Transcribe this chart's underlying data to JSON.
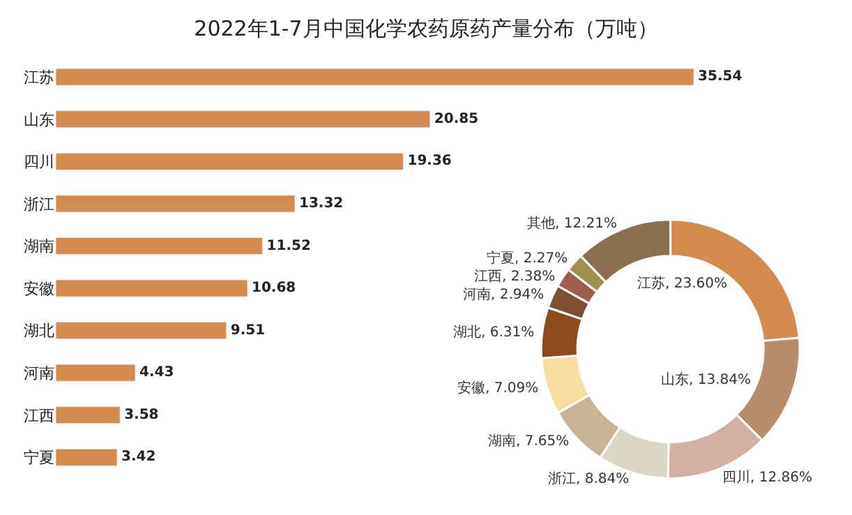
{
  "chart_data": [
    {
      "type": "bar",
      "title": "2022年1-7月中国化学农药原药产量分布（万吨）",
      "orientation": "horizontal",
      "categories": [
        "江苏",
        "山东",
        "四川",
        "浙江",
        "湖南",
        "安徽",
        "湖北",
        "河南",
        "江西",
        "宁夏"
      ],
      "values": [
        35.54,
        20.85,
        19.36,
        13.32,
        11.52,
        10.68,
        9.51,
        4.43,
        3.58,
        3.42
      ],
      "color": "#d48c4e",
      "data_labels": true
    },
    {
      "type": "donut",
      "categories": [
        "江苏",
        "山东",
        "四川",
        "浙江",
        "湖南",
        "安徽",
        "湖北",
        "河南",
        "江西",
        "宁夏",
        "其他"
      ],
      "values": [
        23.6,
        13.84,
        12.86,
        8.84,
        7.65,
        7.09,
        6.31,
        2.94,
        2.38,
        2.27,
        12.21
      ],
      "value_labels": [
        "23.60%",
        "13.84%",
        "12.86%",
        "8.84%",
        "7.65%",
        "7.09%",
        "6.31%",
        "2.94%",
        "2.38%",
        "2.27%",
        "12.21%"
      ],
      "colors": [
        "#d48c4e",
        "#b88d6c",
        "#d4b0a4",
        "#dcd6c4",
        "#c8b494",
        "#f8dca0",
        "#8c4c1c",
        "#7c5030",
        "#a05c4c",
        "#a09050",
        "#8c7050"
      ]
    }
  ]
}
